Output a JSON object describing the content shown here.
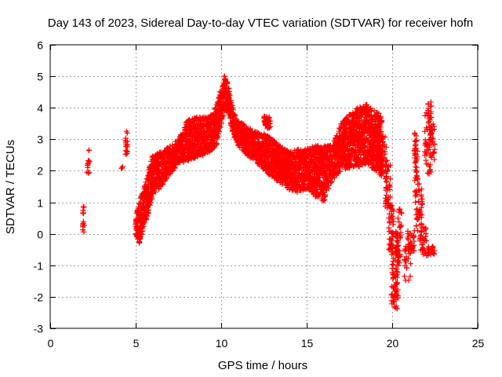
{
  "chart_data": {
    "type": "scatter",
    "title": "Day 143 of 2023, Sidereal Day-to-day VTEC variation (SDTVAR) for receiver hofn",
    "xlabel": "GPS time / hours",
    "ylabel": "SDTVAR / TECUs",
    "xlim": [
      0,
      25
    ],
    "ylim": [
      -3,
      6
    ],
    "xticks": [
      0,
      5,
      10,
      15,
      20,
      25
    ],
    "yticks": [
      -3,
      -2,
      -1,
      0,
      1,
      2,
      3,
      4,
      5,
      6
    ],
    "grid": true,
    "marker": "+",
    "color": "#ff0000",
    "series": [
      {
        "name": "SDTVAR",
        "band_envelope": {
          "x": [
            5.0,
            5.2,
            5.5,
            6.0,
            6.5,
            7.0,
            7.5,
            8.0,
            8.5,
            9.0,
            9.5,
            9.8,
            10.0,
            10.2,
            10.4,
            10.6,
            10.8,
            11.0,
            11.5,
            12.0,
            12.5,
            13.0,
            13.5,
            14.0,
            14.5,
            15.0,
            15.5,
            16.0,
            16.5,
            17.0,
            17.5,
            18.0,
            18.5,
            19.0,
            19.4
          ],
          "lower": [
            0.0,
            -0.3,
            0.2,
            1.2,
            1.5,
            1.9,
            2.2,
            2.3,
            2.4,
            2.5,
            2.6,
            2.9,
            3.5,
            3.9,
            3.8,
            3.3,
            3.0,
            2.8,
            2.5,
            2.3,
            2.0,
            1.8,
            1.6,
            1.4,
            1.3,
            1.4,
            1.2,
            1.0,
            1.7,
            2.0,
            2.1,
            2.1,
            2.2,
            2.0,
            1.9
          ],
          "upper": [
            0.5,
            1.0,
            1.5,
            2.5,
            2.6,
            2.8,
            3.0,
            3.6,
            3.7,
            3.7,
            3.8,
            4.2,
            4.7,
            5.05,
            4.8,
            4.2,
            3.8,
            3.6,
            3.4,
            3.3,
            3.2,
            3.0,
            2.8,
            2.6,
            2.7,
            2.7,
            2.8,
            2.8,
            2.8,
            3.5,
            3.8,
            4.0,
            4.1,
            3.9,
            3.8
          ]
        },
        "clusters": [
          {
            "x": [
              1.9,
              2.0
            ],
            "y": [
              0.0,
              1.1
            ],
            "n": 14
          },
          {
            "x": [
              2.15,
              2.3
            ],
            "y": [
              1.9,
              2.4
            ],
            "n": 12
          },
          {
            "x": [
              2.2,
              2.3
            ],
            "y": [
              2.6,
              2.7
            ],
            "n": 2
          },
          {
            "x": [
              4.15,
              4.3
            ],
            "y": [
              1.9,
              2.2
            ],
            "n": 3
          },
          {
            "x": [
              4.4,
              4.6
            ],
            "y": [
              2.5,
              3.3
            ],
            "n": 18
          },
          {
            "x": [
              12.5,
              12.9
            ],
            "y": [
              3.35,
              3.75
            ],
            "n": 40
          },
          {
            "x": [
              19.2,
              19.7
            ],
            "y": [
              1.8,
              3.1
            ],
            "n": 60
          },
          {
            "x": [
              19.6,
              19.9
            ],
            "y": [
              0.8,
              2.2
            ],
            "n": 40
          },
          {
            "x": [
              19.8,
              20.1
            ],
            "y": [
              -0.6,
              1.0
            ],
            "n": 45
          },
          {
            "x": [
              19.95,
              20.35
            ],
            "y": [
              -2.4,
              -0.3
            ],
            "n": 70
          },
          {
            "x": [
              20.2,
              20.5
            ],
            "y": [
              -1.0,
              0.5
            ],
            "n": 40
          },
          {
            "x": [
              20.4,
              20.6
            ],
            "y": [
              0.2,
              0.8
            ],
            "n": 10
          },
          {
            "x": [
              20.7,
              21.1
            ],
            "y": [
              -1.5,
              -0.3
            ],
            "n": 25
          },
          {
            "x": [
              20.9,
              21.3
            ],
            "y": [
              -0.6,
              0.1
            ],
            "n": 30
          },
          {
            "x": [
              21.3,
              21.5
            ],
            "y": [
              1.0,
              3.2
            ],
            "n": 50
          },
          {
            "x": [
              21.4,
              21.8
            ],
            "y": [
              0.0,
              1.6
            ],
            "n": 40
          },
          {
            "x": [
              21.6,
              22.0
            ],
            "y": [
              -0.7,
              0.3
            ],
            "n": 30
          },
          {
            "x": [
              21.9,
              22.3
            ],
            "y": [
              1.9,
              4.3
            ],
            "n": 60
          },
          {
            "x": [
              22.0,
              22.5
            ],
            "y": [
              -0.7,
              -0.4
            ],
            "n": 25
          },
          {
            "x": [
              22.2,
              22.5
            ],
            "y": [
              2.0,
              3.5
            ],
            "n": 30
          }
        ]
      }
    ]
  }
}
